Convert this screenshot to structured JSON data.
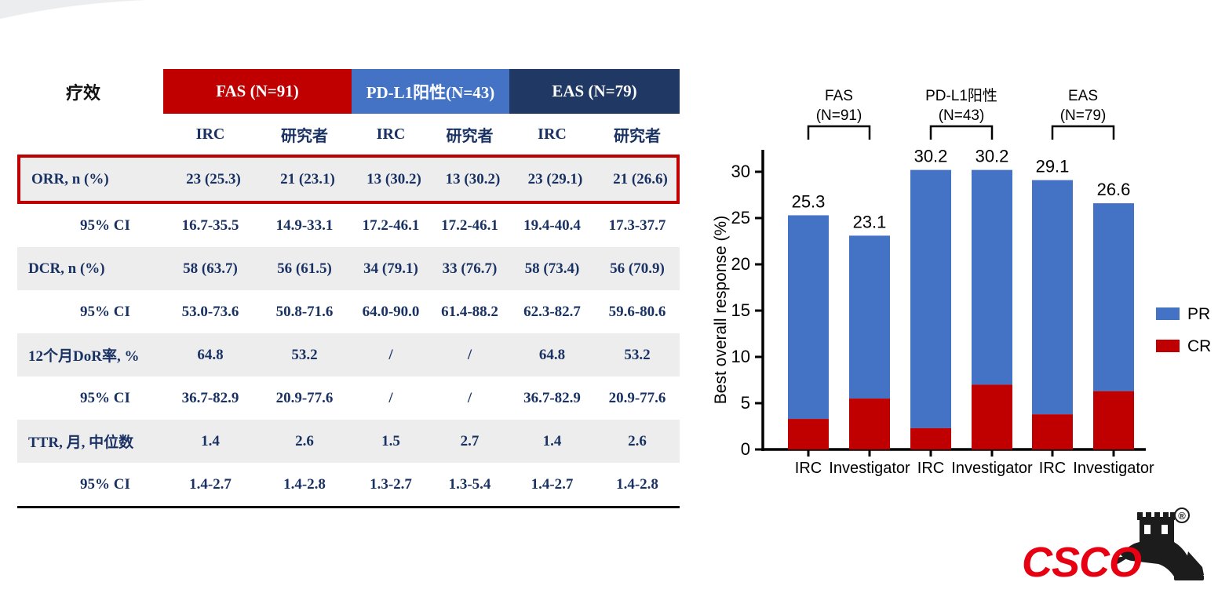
{
  "table": {
    "corner_label": "疗效",
    "groups": [
      {
        "label": "FAS (N=91)",
        "color": "#C00000"
      },
      {
        "label": "PD-L1阳性(N=43)",
        "color": "#4472C4"
      },
      {
        "label": "EAS (N=79)",
        "color": "#1F3864"
      }
    ],
    "subheaders": [
      "IRC",
      "研究者",
      "IRC",
      "研究者",
      "IRC",
      "研究者"
    ],
    "rows": [
      {
        "label": "ORR, n (%)",
        "values": [
          "23 (25.3)",
          "21 (23.1)",
          "13 (30.2)",
          "13 (30.2)",
          "23 (29.1)",
          "21 (26.6)"
        ],
        "shaded": true,
        "highlight": true
      },
      {
        "label": "95% CI",
        "values": [
          "16.7-35.5",
          "14.9-33.1",
          "17.2-46.1",
          "17.2-46.1",
          "19.4-40.4",
          "17.3-37.7"
        ],
        "shaded": false,
        "highlight": false
      },
      {
        "label": "DCR, n (%)",
        "values": [
          "58 (63.7)",
          "56 (61.5)",
          "34 (79.1)",
          "33 (76.7)",
          "58 (73.4)",
          "56 (70.9)"
        ],
        "shaded": true,
        "highlight": false
      },
      {
        "label": "95% CI",
        "values": [
          "53.0-73.6",
          "50.8-71.6",
          "64.0-90.0",
          "61.4-88.2",
          "62.3-82.7",
          "59.6-80.6"
        ],
        "shaded": false,
        "highlight": false
      },
      {
        "label": "12个月DoR率, %",
        "values": [
          "64.8",
          "53.2",
          "/",
          "/",
          "64.8",
          "53.2"
        ],
        "shaded": true,
        "highlight": false
      },
      {
        "label": "95% CI",
        "values": [
          "36.7-82.9",
          "20.9-77.6",
          "/",
          "/",
          "36.7-82.9",
          "20.9-77.6"
        ],
        "shaded": false,
        "highlight": false
      },
      {
        "label": "TTR, 月, 中位数",
        "values": [
          "1.4",
          "2.6",
          "1.5",
          "2.7",
          "1.4",
          "2.6"
        ],
        "shaded": true,
        "highlight": false
      },
      {
        "label": "95% CI",
        "values": [
          "1.4-2.7",
          "1.4-2.8",
          "1.3-2.7",
          "1.3-5.4",
          "1.4-2.7",
          "1.4-2.8"
        ],
        "shaded": false,
        "highlight": false
      }
    ],
    "shade_color": "#EDEDED",
    "highlight_border_color": "#C00000",
    "text_color": "#1A3263"
  },
  "chart_data": {
    "type": "bar",
    "stacked": true,
    "ylabel": "Best overall response (%)",
    "ylim": [
      0,
      32
    ],
    "yticks": [
      0,
      5,
      10,
      15,
      20,
      25,
      30
    ],
    "grid": false,
    "legend_position": "right",
    "categories": [
      "IRC",
      "Investigator",
      "IRC",
      "Investigator",
      "IRC",
      "Investigator"
    ],
    "group_headers": [
      {
        "label": "FAS",
        "sublabel": "(N=91)",
        "bars": [
          0,
          1
        ]
      },
      {
        "label": "PD-L1阳性",
        "sublabel": "(N=43)",
        "bars": [
          2,
          3
        ]
      },
      {
        "label": "EAS",
        "sublabel": "(N=79)",
        "bars": [
          4,
          5
        ]
      }
    ],
    "series": [
      {
        "name": "CR",
        "color": "#C00000",
        "values": [
          3.3,
          5.5,
          2.3,
          7.0,
          3.8,
          6.3
        ]
      },
      {
        "name": "PR",
        "color": "#4472C4",
        "values": [
          22.0,
          17.6,
          27.9,
          23.2,
          25.3,
          20.3
        ]
      }
    ],
    "totals": [
      25.3,
      23.1,
      30.2,
      30.2,
      29.1,
      26.6
    ],
    "bar_labels": [
      "25.3",
      "23.1",
      "30.2",
      "30.2",
      "29.1",
      "26.6"
    ],
    "legend": [
      {
        "label": "PR",
        "color": "#4472C4"
      },
      {
        "label": "CR",
        "color": "#C00000"
      }
    ],
    "axis_color": "#000000"
  },
  "logo": {
    "text": "CSCO",
    "registered": "®",
    "color": "#E60012"
  }
}
